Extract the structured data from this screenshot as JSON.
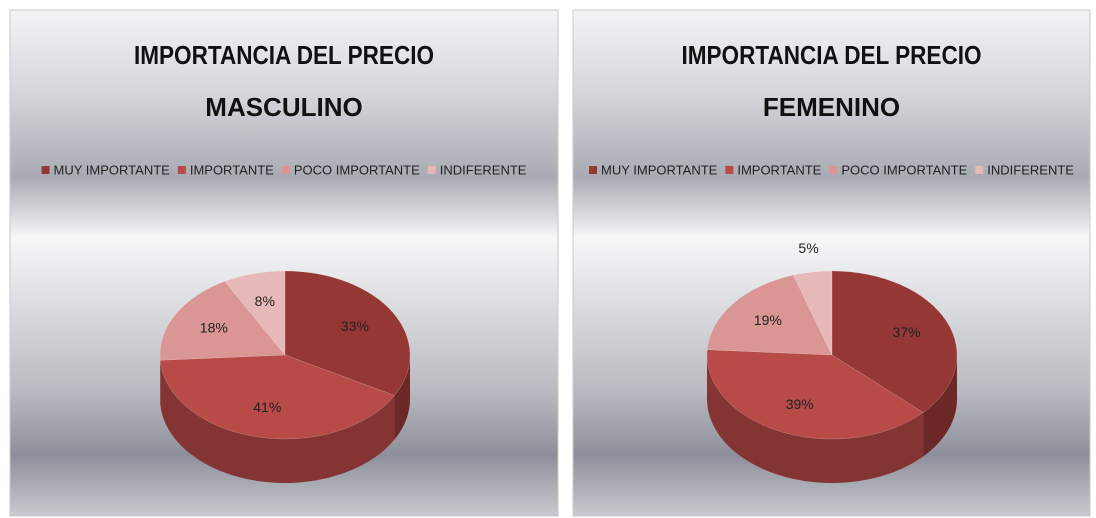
{
  "chart_data": [
    {
      "type": "pie",
      "title": "IMPORTANCIA DEL PRECIO",
      "subtitle": "MASCULINO",
      "categories": [
        "MUY IMPORTANTE",
        "IMPORTANTE",
        "POCO IMPORTANTE",
        "INDIFERENTE"
      ],
      "values": [
        33,
        41,
        18,
        8
      ],
      "value_labels": [
        "33%",
        "41%",
        "18%",
        "8%"
      ],
      "colors": [
        "#953735",
        "#b84a47",
        "#d99694",
        "#e6b9b8"
      ],
      "legend": "top"
    },
    {
      "type": "pie",
      "title": "IMPORTANCIA DEL PRECIO",
      "subtitle": "FEMENINO",
      "categories": [
        "MUY IMPORTANTE",
        "IMPORTANTE",
        "POCO IMPORTANTE",
        "INDIFERENTE"
      ],
      "values": [
        37,
        39,
        19,
        5
      ],
      "value_labels": [
        "37%",
        "39%",
        "19%",
        "5%"
      ],
      "colors": [
        "#953735",
        "#b84a47",
        "#d99694",
        "#e6b9b8"
      ],
      "legend": "top"
    }
  ]
}
